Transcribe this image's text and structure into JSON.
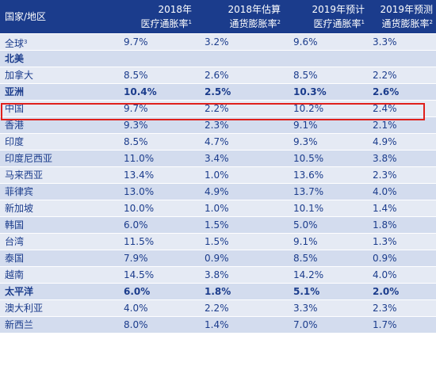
{
  "headers": {
    "region": "国家/地区",
    "col1": {
      "line1": "2018年",
      "line2": "医疗通胀率",
      "sup": "1"
    },
    "col2": {
      "line1": "2018年估算",
      "line2": "通货膨胀率",
      "sup": "2"
    },
    "col3": {
      "line1": "2019年预计",
      "line2": "医疗通胀率",
      "sup": "1"
    },
    "col4": {
      "line1": "2019年预测",
      "line2": "通货膨胀率",
      "sup": "2"
    }
  },
  "rows": [
    {
      "name": "全球",
      "sup": "3",
      "v1": "9.7%",
      "v2": "3.2%",
      "v3": "9.6%",
      "v4": "3.3%",
      "bold": false
    },
    {
      "name": "北美",
      "v1": "",
      "v2": "",
      "v3": "",
      "v4": "",
      "bold": true
    },
    {
      "name": "加拿大",
      "v1": "8.5%",
      "v2": "2.6%",
      "v3": "8.5%",
      "v4": "2.2%",
      "bold": false
    },
    {
      "name": "亚洲",
      "v1": "10.4%",
      "v2": "2.5%",
      "v3": "10.3%",
      "v4": "2.6%",
      "bold": true
    },
    {
      "name": "中国",
      "v1": "9.7%",
      "v2": "2.2%",
      "v3": "10.2%",
      "v4": "2.4%",
      "bold": false
    },
    {
      "name": "香港",
      "v1": "9.3%",
      "v2": "2.3%",
      "v3": "9.1%",
      "v4": "2.1%",
      "bold": false
    },
    {
      "name": "印度",
      "v1": "8.5%",
      "v2": "4.7%",
      "v3": "9.3%",
      "v4": "4.9%",
      "bold": false
    },
    {
      "name": "印度尼西亚",
      "v1": "11.0%",
      "v2": "3.4%",
      "v3": "10.5%",
      "v4": "3.8%",
      "bold": false
    },
    {
      "name": "马来西亚",
      "v1": "13.4%",
      "v2": "1.0%",
      "v3": "13.6%",
      "v4": "2.3%",
      "bold": false
    },
    {
      "name": "菲律宾",
      "v1": "13.0%",
      "v2": "4.9%",
      "v3": "13.7%",
      "v4": "4.0%",
      "bold": false
    },
    {
      "name": "新加坡",
      "v1": "10.0%",
      "v2": "1.0%",
      "v3": "10.1%",
      "v4": "1.4%",
      "bold": false
    },
    {
      "name": "韩国",
      "v1": "6.0%",
      "v2": "1.5%",
      "v3": "5.0%",
      "v4": "1.8%",
      "bold": false
    },
    {
      "name": "台湾",
      "v1": "11.5%",
      "v2": "1.5%",
      "v3": "9.1%",
      "v4": "1.3%",
      "bold": false
    },
    {
      "name": "泰国",
      "v1": "7.9%",
      "v2": "0.9%",
      "v3": "8.5%",
      "v4": "0.9%",
      "bold": false
    },
    {
      "name": "越南",
      "v1": "14.5%",
      "v2": "3.8%",
      "v3": "14.2%",
      "v4": "4.0%",
      "bold": false
    },
    {
      "name": "太平洋",
      "v1": "6.0%",
      "v2": "1.8%",
      "v3": "5.1%",
      "v4": "2.0%",
      "bold": true
    },
    {
      "name": "澳大利亚",
      "v1": "4.0%",
      "v2": "2.2%",
      "v3": "3.3%",
      "v4": "2.3%",
      "bold": false
    },
    {
      "name": "新西兰",
      "v1": "8.0%",
      "v2": "1.4%",
      "v3": "7.0%",
      "v4": "1.7%",
      "bold": false
    }
  ],
  "highlighted_row": "中国",
  "colors": {
    "header_bg": "#1b3c8c",
    "text": "#1b3c8c",
    "row_light": "#e5eaf4",
    "row_dark": "#d3dcee",
    "highlight_border": "#e0201b"
  }
}
